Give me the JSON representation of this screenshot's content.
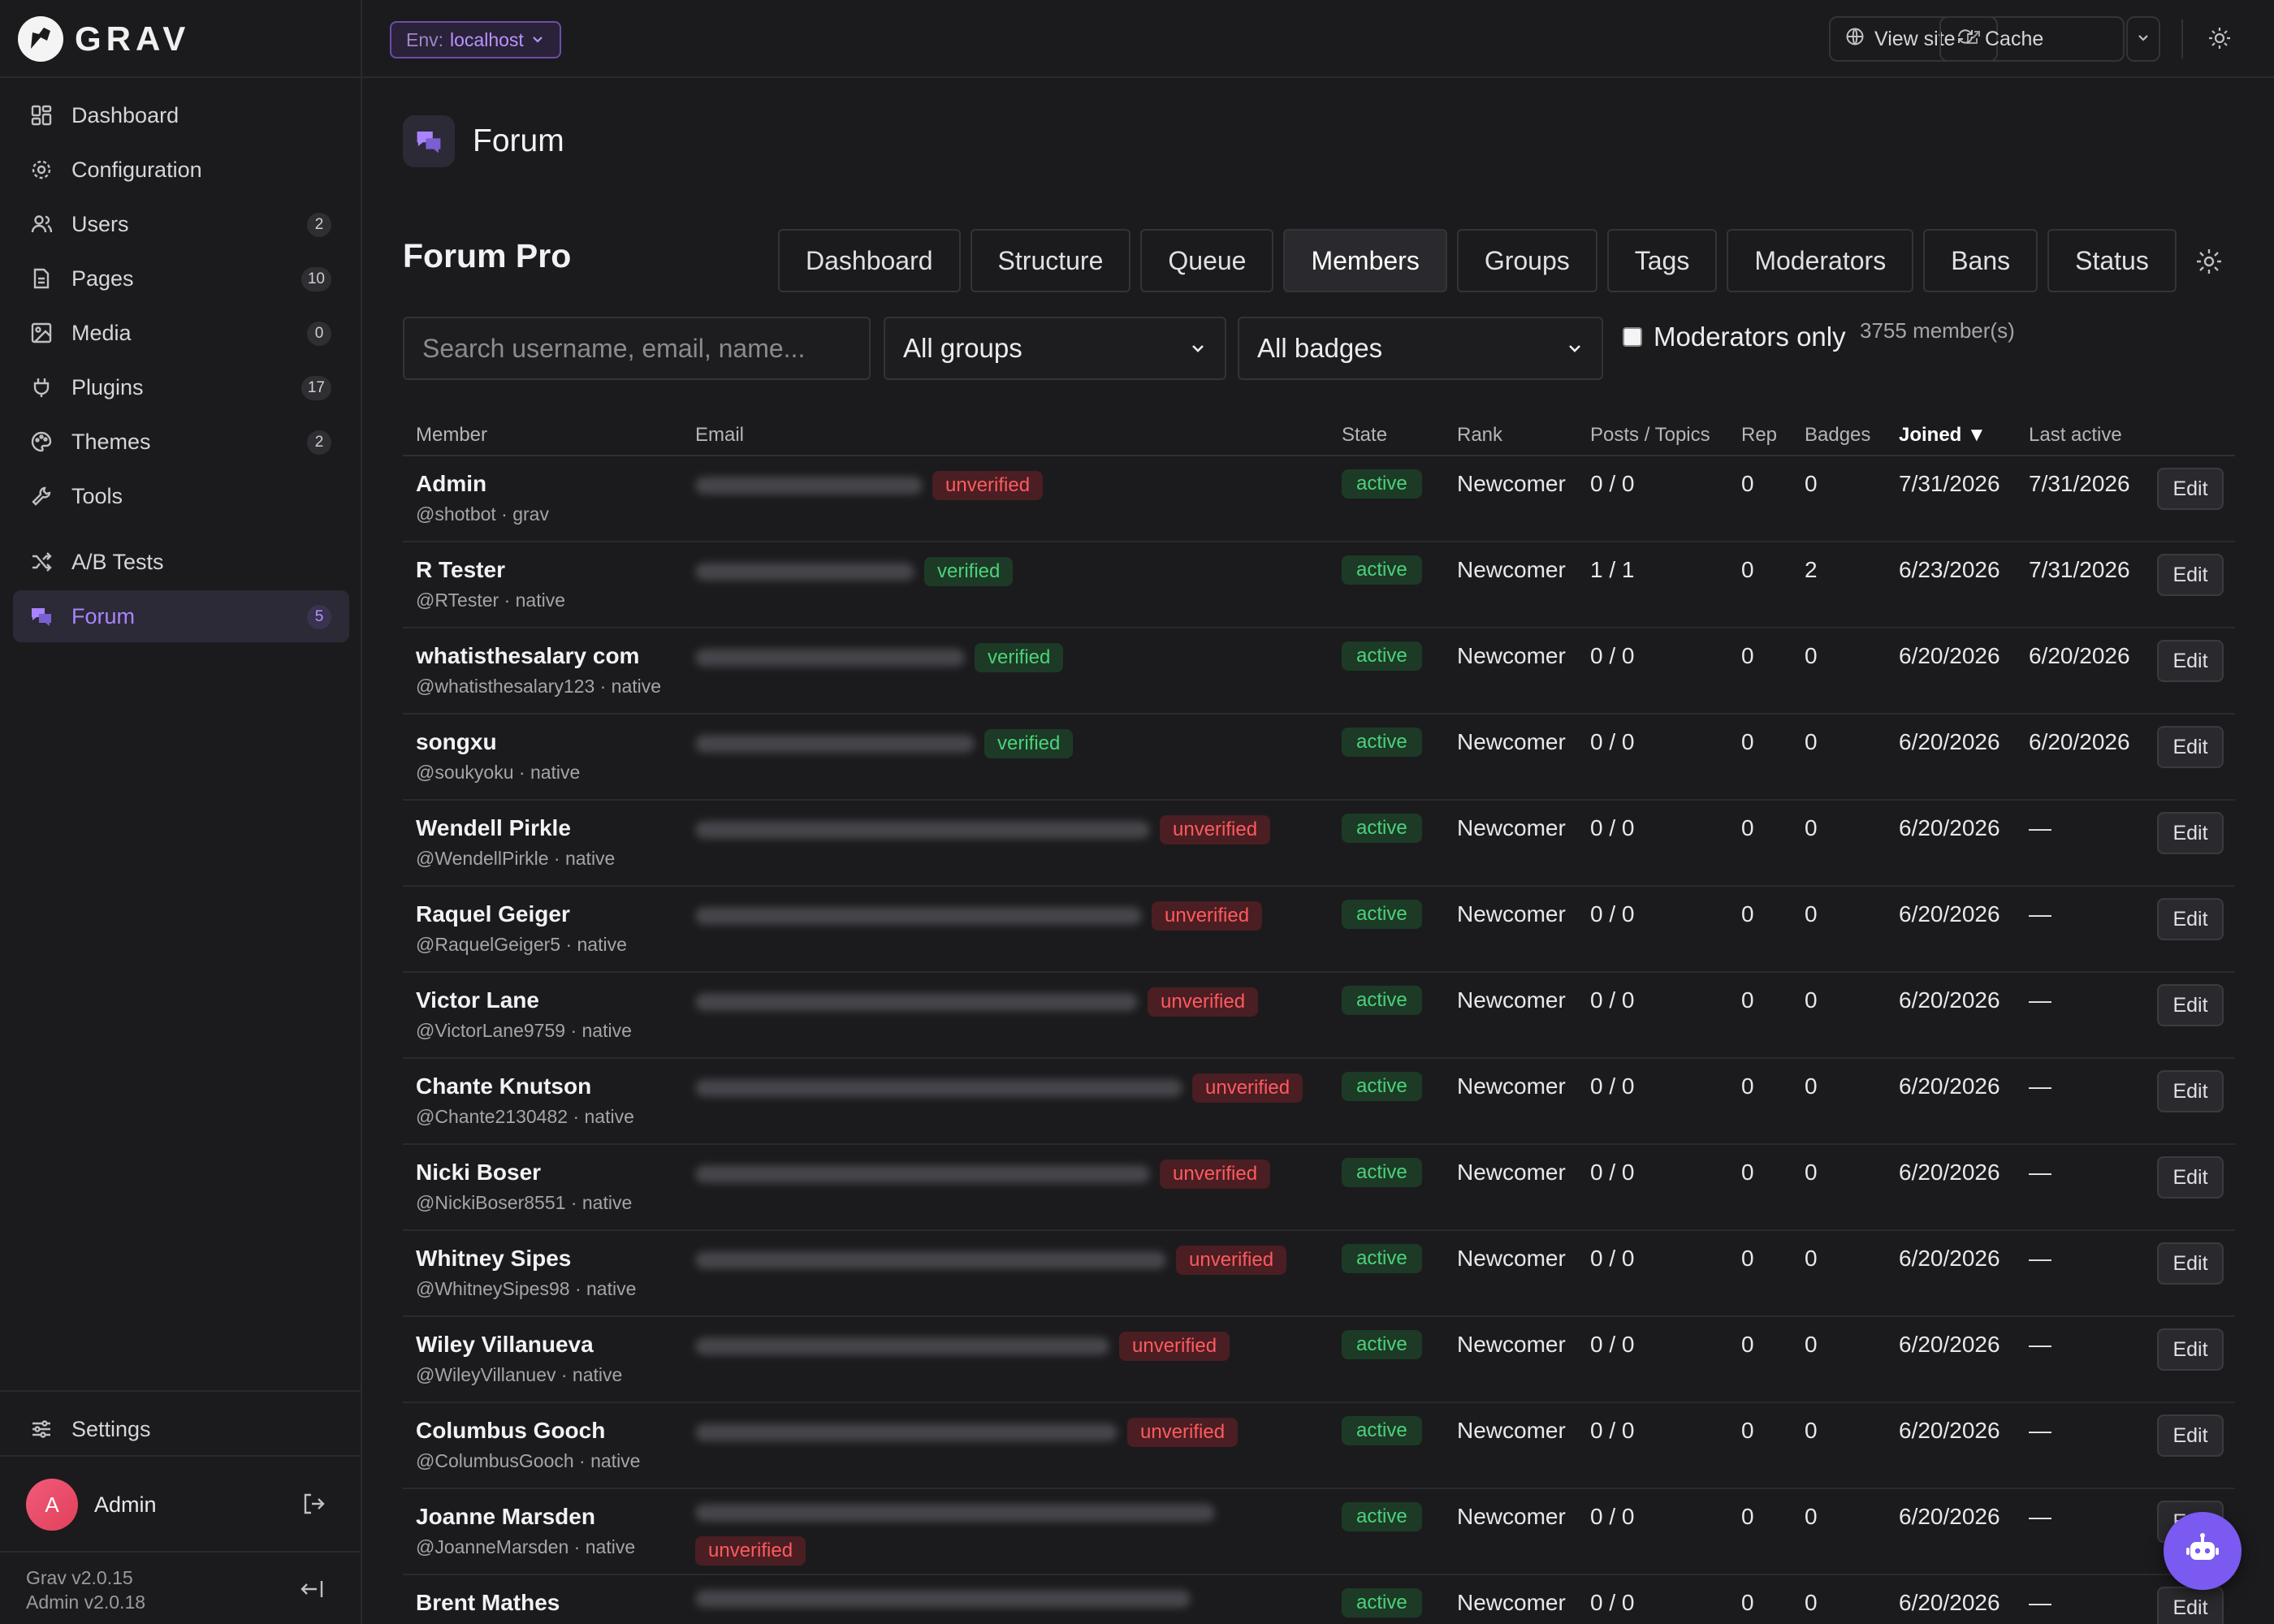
{
  "brand": {
    "logo_text": "GRAV"
  },
  "sidebar": {
    "items": [
      {
        "label": "Dashboard",
        "icon": "dashboard-icon",
        "badge": ""
      },
      {
        "label": "Configuration",
        "icon": "gear-icon",
        "badge": ""
      },
      {
        "label": "Users",
        "icon": "users-icon",
        "badge": "2"
      },
      {
        "label": "Pages",
        "icon": "pages-icon",
        "badge": "10"
      },
      {
        "label": "Media",
        "icon": "image-icon",
        "badge": "0"
      },
      {
        "label": "Plugins",
        "icon": "plug-icon",
        "badge": "17"
      },
      {
        "label": "Themes",
        "icon": "palette-icon",
        "badge": "2"
      },
      {
        "label": "Tools",
        "icon": "wrench-icon",
        "badge": ""
      },
      {
        "label": "A/B Tests",
        "icon": "shuffle-icon",
        "badge": ""
      },
      {
        "label": "Forum",
        "icon": "chat-icon",
        "badge": "5",
        "active": true
      }
    ],
    "settings_label": "Settings",
    "user_name": "Admin",
    "avatar_initial": "A",
    "version_grav": "Grav v2.0.15",
    "version_admin": "Admin v2.0.18"
  },
  "topbar": {
    "env_key": "Env:",
    "env_value": "localhost",
    "view_site_label": "View site",
    "cache_label": "Cache"
  },
  "page": {
    "title": "Forum"
  },
  "forum": {
    "title": "Forum Pro",
    "tabs": [
      "Dashboard",
      "Structure",
      "Queue",
      "Members",
      "Groups",
      "Tags",
      "Moderators",
      "Bans",
      "Status"
    ],
    "active_tab": "Members"
  },
  "filters": {
    "search_placeholder": "Search username, email, name...",
    "groups_value": "All groups",
    "badges_value": "All badges",
    "moderators_only_label": "Moderators only",
    "member_count": "3755 member(s)"
  },
  "table": {
    "columns": [
      "Member",
      "Email",
      "State",
      "Rank",
      "Posts / Topics",
      "Rep",
      "Badges",
      "Joined ▼",
      "Last active"
    ],
    "edit_label": "Edit",
    "rows": [
      {
        "name": "Admin",
        "handle": "@shotbot · grav",
        "email_verified": "unverified",
        "state": "active",
        "rank": "Newcomer",
        "posts": "0 / 0",
        "rep": "0",
        "badges": "0",
        "joined": "7/31/2026",
        "last_active": "7/31/2026"
      },
      {
        "name": "R Tester",
        "handle": "@RTester · native",
        "email_verified": "verified",
        "state": "active",
        "rank": "Newcomer",
        "posts": "1 / 1",
        "rep": "0",
        "badges": "2",
        "joined": "6/23/2026",
        "last_active": "7/31/2026"
      },
      {
        "name": "whatisthesalary com",
        "handle": "@whatisthesalary123 · native",
        "email_verified": "verified",
        "state": "active",
        "rank": "Newcomer",
        "posts": "0 / 0",
        "rep": "0",
        "badges": "0",
        "joined": "6/20/2026",
        "last_active": "6/20/2026"
      },
      {
        "name": "songxu",
        "handle": "@soukyoku · native",
        "email_verified": "verified",
        "state": "active",
        "rank": "Newcomer",
        "posts": "0 / 0",
        "rep": "0",
        "badges": "0",
        "joined": "6/20/2026",
        "last_active": "6/20/2026"
      },
      {
        "name": "Wendell Pirkle",
        "handle": "@WendellPirkle · native",
        "email_verified": "unverified",
        "state": "active",
        "rank": "Newcomer",
        "posts": "0 / 0",
        "rep": "0",
        "badges": "0",
        "joined": "6/20/2026",
        "last_active": "—"
      },
      {
        "name": "Raquel Geiger",
        "handle": "@RaquelGeiger5 · native",
        "email_verified": "unverified",
        "state": "active",
        "rank": "Newcomer",
        "posts": "0 / 0",
        "rep": "0",
        "badges": "0",
        "joined": "6/20/2026",
        "last_active": "—"
      },
      {
        "name": "Victor Lane",
        "handle": "@VictorLane9759 · native",
        "email_verified": "unverified",
        "state": "active",
        "rank": "Newcomer",
        "posts": "0 / 0",
        "rep": "0",
        "badges": "0",
        "joined": "6/20/2026",
        "last_active": "—"
      },
      {
        "name": "Chante Knutson",
        "handle": "@Chante2130482 · native",
        "email_verified": "unverified",
        "state": "active",
        "rank": "Newcomer",
        "posts": "0 / 0",
        "rep": "0",
        "badges": "0",
        "joined": "6/20/2026",
        "last_active": "—"
      },
      {
        "name": "Nicki Boser",
        "handle": "@NickiBoser8551 · native",
        "email_verified": "unverified",
        "state": "active",
        "rank": "Newcomer",
        "posts": "0 / 0",
        "rep": "0",
        "badges": "0",
        "joined": "6/20/2026",
        "last_active": "—"
      },
      {
        "name": "Whitney Sipes",
        "handle": "@WhitneySipes98 · native",
        "email_verified": "unverified",
        "state": "active",
        "rank": "Newcomer",
        "posts": "0 / 0",
        "rep": "0",
        "badges": "0",
        "joined": "6/20/2026",
        "last_active": "—"
      },
      {
        "name": "Wiley Villanueva",
        "handle": "@WileyVillanuev · native",
        "email_verified": "unverified",
        "state": "active",
        "rank": "Newcomer",
        "posts": "0 / 0",
        "rep": "0",
        "badges": "0",
        "joined": "6/20/2026",
        "last_active": "—"
      },
      {
        "name": "Columbus Gooch",
        "handle": "@ColumbusGooch · native",
        "email_verified": "unverified",
        "state": "active",
        "rank": "Newcomer",
        "posts": "0 / 0",
        "rep": "0",
        "badges": "0",
        "joined": "6/20/2026",
        "last_active": "—"
      },
      {
        "name": "Joanne Marsden",
        "handle": "@JoanneMarsden · native",
        "email_verified": "unverified",
        "state": "active",
        "rank": "Newcomer",
        "posts": "0 / 0",
        "rep": "0",
        "badges": "0",
        "joined": "6/20/2026",
        "last_active": "—"
      },
      {
        "name": "Brent Mathes",
        "handle": "",
        "email_verified": "",
        "state": "active",
        "rank": "Newcomer",
        "posts": "0 / 0",
        "rep": "0",
        "badges": "0",
        "joined": "6/20/2026",
        "last_active": "—"
      }
    ]
  },
  "colors": {
    "accent": "#a884ff",
    "verified": "#4bd27a",
    "unverified": "#ff5a5f",
    "background": "#1b1b1d"
  }
}
